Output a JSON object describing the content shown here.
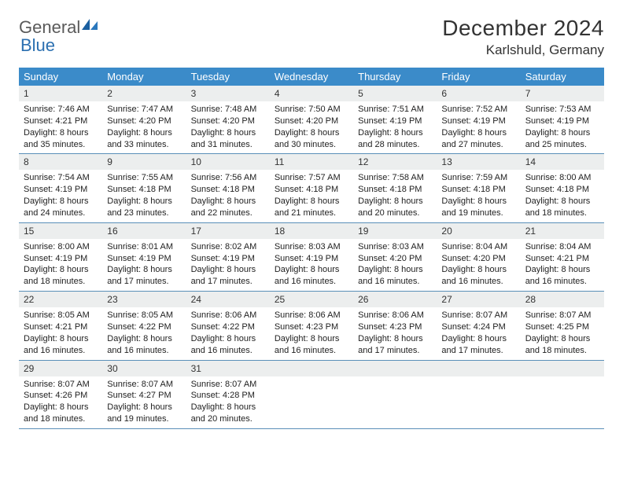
{
  "logo": {
    "text_gray": "General",
    "text_blue": "Blue"
  },
  "title": "December 2024",
  "location": "Karlshuld, Germany",
  "header_bg": "#3b8bc9",
  "daynum_bg": "#eceeee",
  "row_border": "#5a8fb8",
  "weekdays": [
    "Sunday",
    "Monday",
    "Tuesday",
    "Wednesday",
    "Thursday",
    "Friday",
    "Saturday"
  ],
  "weeks": [
    [
      {
        "n": "1",
        "sr": "Sunrise: 7:46 AM",
        "ss": "Sunset: 4:21 PM",
        "d1": "Daylight: 8 hours",
        "d2": "and 35 minutes."
      },
      {
        "n": "2",
        "sr": "Sunrise: 7:47 AM",
        "ss": "Sunset: 4:20 PM",
        "d1": "Daylight: 8 hours",
        "d2": "and 33 minutes."
      },
      {
        "n": "3",
        "sr": "Sunrise: 7:48 AM",
        "ss": "Sunset: 4:20 PM",
        "d1": "Daylight: 8 hours",
        "d2": "and 31 minutes."
      },
      {
        "n": "4",
        "sr": "Sunrise: 7:50 AM",
        "ss": "Sunset: 4:20 PM",
        "d1": "Daylight: 8 hours",
        "d2": "and 30 minutes."
      },
      {
        "n": "5",
        "sr": "Sunrise: 7:51 AM",
        "ss": "Sunset: 4:19 PM",
        "d1": "Daylight: 8 hours",
        "d2": "and 28 minutes."
      },
      {
        "n": "6",
        "sr": "Sunrise: 7:52 AM",
        "ss": "Sunset: 4:19 PM",
        "d1": "Daylight: 8 hours",
        "d2": "and 27 minutes."
      },
      {
        "n": "7",
        "sr": "Sunrise: 7:53 AM",
        "ss": "Sunset: 4:19 PM",
        "d1": "Daylight: 8 hours",
        "d2": "and 25 minutes."
      }
    ],
    [
      {
        "n": "8",
        "sr": "Sunrise: 7:54 AM",
        "ss": "Sunset: 4:19 PM",
        "d1": "Daylight: 8 hours",
        "d2": "and 24 minutes."
      },
      {
        "n": "9",
        "sr": "Sunrise: 7:55 AM",
        "ss": "Sunset: 4:18 PM",
        "d1": "Daylight: 8 hours",
        "d2": "and 23 minutes."
      },
      {
        "n": "10",
        "sr": "Sunrise: 7:56 AM",
        "ss": "Sunset: 4:18 PM",
        "d1": "Daylight: 8 hours",
        "d2": "and 22 minutes."
      },
      {
        "n": "11",
        "sr": "Sunrise: 7:57 AM",
        "ss": "Sunset: 4:18 PM",
        "d1": "Daylight: 8 hours",
        "d2": "and 21 minutes."
      },
      {
        "n": "12",
        "sr": "Sunrise: 7:58 AM",
        "ss": "Sunset: 4:18 PM",
        "d1": "Daylight: 8 hours",
        "d2": "and 20 minutes."
      },
      {
        "n": "13",
        "sr": "Sunrise: 7:59 AM",
        "ss": "Sunset: 4:18 PM",
        "d1": "Daylight: 8 hours",
        "d2": "and 19 minutes."
      },
      {
        "n": "14",
        "sr": "Sunrise: 8:00 AM",
        "ss": "Sunset: 4:18 PM",
        "d1": "Daylight: 8 hours",
        "d2": "and 18 minutes."
      }
    ],
    [
      {
        "n": "15",
        "sr": "Sunrise: 8:00 AM",
        "ss": "Sunset: 4:19 PM",
        "d1": "Daylight: 8 hours",
        "d2": "and 18 minutes."
      },
      {
        "n": "16",
        "sr": "Sunrise: 8:01 AM",
        "ss": "Sunset: 4:19 PM",
        "d1": "Daylight: 8 hours",
        "d2": "and 17 minutes."
      },
      {
        "n": "17",
        "sr": "Sunrise: 8:02 AM",
        "ss": "Sunset: 4:19 PM",
        "d1": "Daylight: 8 hours",
        "d2": "and 17 minutes."
      },
      {
        "n": "18",
        "sr": "Sunrise: 8:03 AM",
        "ss": "Sunset: 4:19 PM",
        "d1": "Daylight: 8 hours",
        "d2": "and 16 minutes."
      },
      {
        "n": "19",
        "sr": "Sunrise: 8:03 AM",
        "ss": "Sunset: 4:20 PM",
        "d1": "Daylight: 8 hours",
        "d2": "and 16 minutes."
      },
      {
        "n": "20",
        "sr": "Sunrise: 8:04 AM",
        "ss": "Sunset: 4:20 PM",
        "d1": "Daylight: 8 hours",
        "d2": "and 16 minutes."
      },
      {
        "n": "21",
        "sr": "Sunrise: 8:04 AM",
        "ss": "Sunset: 4:21 PM",
        "d1": "Daylight: 8 hours",
        "d2": "and 16 minutes."
      }
    ],
    [
      {
        "n": "22",
        "sr": "Sunrise: 8:05 AM",
        "ss": "Sunset: 4:21 PM",
        "d1": "Daylight: 8 hours",
        "d2": "and 16 minutes."
      },
      {
        "n": "23",
        "sr": "Sunrise: 8:05 AM",
        "ss": "Sunset: 4:22 PM",
        "d1": "Daylight: 8 hours",
        "d2": "and 16 minutes."
      },
      {
        "n": "24",
        "sr": "Sunrise: 8:06 AM",
        "ss": "Sunset: 4:22 PM",
        "d1": "Daylight: 8 hours",
        "d2": "and 16 minutes."
      },
      {
        "n": "25",
        "sr": "Sunrise: 8:06 AM",
        "ss": "Sunset: 4:23 PM",
        "d1": "Daylight: 8 hours",
        "d2": "and 16 minutes."
      },
      {
        "n": "26",
        "sr": "Sunrise: 8:06 AM",
        "ss": "Sunset: 4:23 PM",
        "d1": "Daylight: 8 hours",
        "d2": "and 17 minutes."
      },
      {
        "n": "27",
        "sr": "Sunrise: 8:07 AM",
        "ss": "Sunset: 4:24 PM",
        "d1": "Daylight: 8 hours",
        "d2": "and 17 minutes."
      },
      {
        "n": "28",
        "sr": "Sunrise: 8:07 AM",
        "ss": "Sunset: 4:25 PM",
        "d1": "Daylight: 8 hours",
        "d2": "and 18 minutes."
      }
    ],
    [
      {
        "n": "29",
        "sr": "Sunrise: 8:07 AM",
        "ss": "Sunset: 4:26 PM",
        "d1": "Daylight: 8 hours",
        "d2": "and 18 minutes."
      },
      {
        "n": "30",
        "sr": "Sunrise: 8:07 AM",
        "ss": "Sunset: 4:27 PM",
        "d1": "Daylight: 8 hours",
        "d2": "and 19 minutes."
      },
      {
        "n": "31",
        "sr": "Sunrise: 8:07 AM",
        "ss": "Sunset: 4:28 PM",
        "d1": "Daylight: 8 hours",
        "d2": "and 20 minutes."
      },
      {
        "empty": true
      },
      {
        "empty": true
      },
      {
        "empty": true
      },
      {
        "empty": true
      }
    ]
  ]
}
